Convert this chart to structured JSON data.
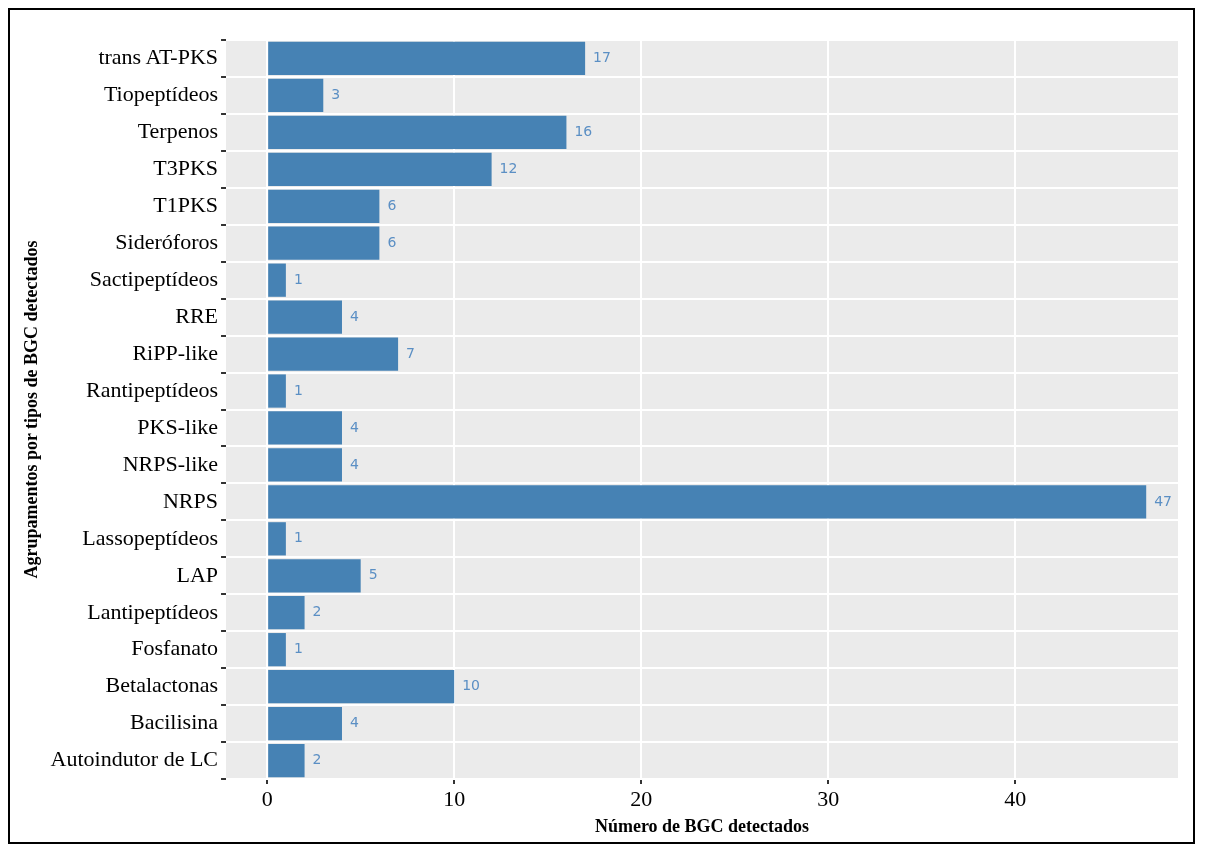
{
  "chart_data": {
    "type": "bar",
    "orientation": "horizontal",
    "xlabel": "Número de BGC detectados",
    "ylabel": "Agrupamentos por tipos de BGC detectados",
    "categories": [
      "trans AT-PKS",
      "Tiopeptídeos",
      "Terpenos",
      "T3PKS",
      "T1PKS",
      "Sideróforos",
      "Sactipeptídeos",
      "RRE",
      "RiPP-like",
      "Rantipeptídeos",
      "PKS-like",
      "NRPS-like",
      "NRPS",
      "Lassopeptídeos",
      "LAP",
      "Lantipeptídeos",
      "Fosfanato",
      "Betalactonas",
      "Bacilisina",
      "Autoindutor de LC"
    ],
    "values": [
      17,
      3,
      16,
      12,
      6,
      6,
      1,
      4,
      7,
      1,
      4,
      4,
      47,
      1,
      5,
      2,
      1,
      10,
      4,
      2
    ],
    "color": "#4682b4",
    "xlim": [
      -2.2,
      48.7
    ],
    "xticks": [
      0,
      10,
      20,
      30,
      40
    ],
    "grid": true,
    "data_labels": true
  }
}
